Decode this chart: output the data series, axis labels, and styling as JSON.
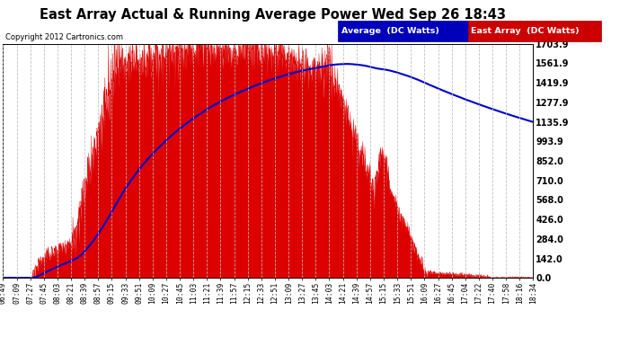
{
  "title": "East Array Actual & Running Average Power Wed Sep 26 18:43",
  "copyright": "Copyright 2012 Cartronics.com",
  "legend_labels": [
    "Average  (DC Watts)",
    "East Array  (DC Watts)"
  ],
  "yticks": [
    0.0,
    142.0,
    284.0,
    426.0,
    568.0,
    710.0,
    852.0,
    993.9,
    1135.9,
    1277.9,
    1419.9,
    1561.9,
    1703.9
  ],
  "ymax": 1703.9,
  "ymin": 0.0,
  "bg_color": "#ffffff",
  "plot_bg": "#ffffff",
  "grid_color": "#bbbbbb",
  "area_color": "#dd0000",
  "line_color": "#0000cc",
  "xtick_labels": [
    "06:49",
    "07:09",
    "07:27",
    "07:45",
    "08:03",
    "08:21",
    "08:39",
    "08:57",
    "09:15",
    "09:33",
    "09:51",
    "10:09",
    "10:27",
    "10:45",
    "11:03",
    "11:21",
    "11:39",
    "11:57",
    "12:15",
    "12:33",
    "12:51",
    "13:09",
    "13:27",
    "13:45",
    "14:03",
    "14:21",
    "14:39",
    "14:57",
    "15:15",
    "15:33",
    "15:51",
    "16:09",
    "16:27",
    "16:45",
    "17:04",
    "17:22",
    "17:40",
    "17:58",
    "18:16",
    "18:34"
  ]
}
